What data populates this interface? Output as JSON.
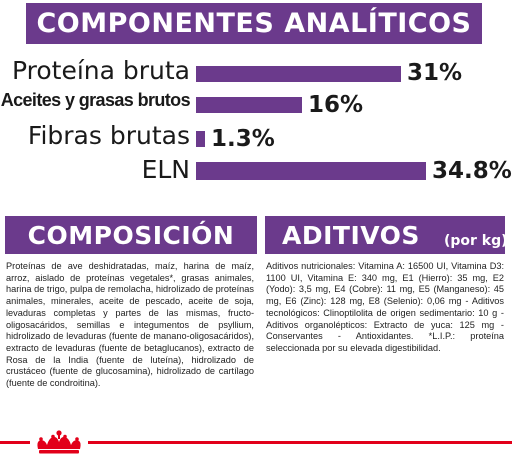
{
  "analytic": {
    "title": "COMPONENTES ANALÍTICOS",
    "rows": [
      {
        "label": "Proteína bruta",
        "value_text": "31%",
        "value": 31
      },
      {
        "label": "Aceites y grasas brutos",
        "value_text": "16%",
        "value": 16
      },
      {
        "label": "Fibras brutas",
        "value_text": "1.3%",
        "value": 1.3
      },
      {
        "label": "ELN",
        "value_text": "34.8%",
        "value": 34.8
      }
    ]
  },
  "composition": {
    "title": "COMPOSICIÓN",
    "text": "Proteínas de ave deshidratadas, maíz, harina de maíz, arroz, aislado de proteínas vegetales*, grasas animales, harina de trigo, pulpa de remolacha, hidrolizado de proteínas animales, minerales, aceite de pescado, aceite de soja, levaduras completas y partes de las mismas, fructo-oligosacáridos, semillas e integumentos de psyllium, hidrolizado de levaduras (fuente de manano-oligosacáridos), extracto de levaduras (fuente de betaglucanos), extracto de Rosa de la India (fuente de luteína), hidrolizado de crustáceo (fuente de glucosamina), hidrolizado de cartílago (fuente de condroitina)."
  },
  "additives": {
    "title": "ADITIVOS",
    "unit": "(por kg)",
    "text": "Aditivos nutricionales: Vitamina A: 16500 UI, Vitamina D3: 1100 UI, Vitamina E: 340 mg, E1 (Hierro): 35 mg, E2 (Yodo): 3,5 mg, E4 (Cobre): 11 mg, E5 (Manganeso): 45 mg, E6 (Zinc): 128 mg, E8 (Selenio): 0,06 mg - Aditivos tecnológicos: Clinoptilolita de origen sedimentario: 10 g - Aditivos organolépticos: Extracto de yuca: 125 mg - Conservantes - Antioxidantes. *L.I.P.: proteína seleccionada por su elevada digestibilidad."
  },
  "brand": {
    "logo_icon": "royal-canin-crown-icon",
    "accent_color": "#e2001a",
    "primary_color": "#6b3a8c"
  }
}
